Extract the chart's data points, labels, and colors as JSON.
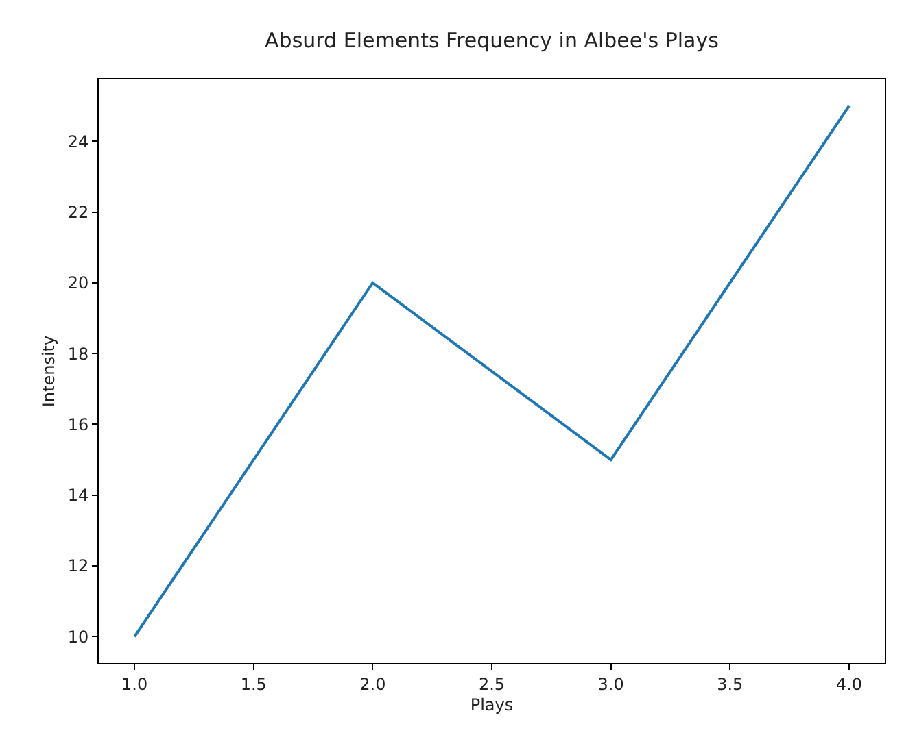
{
  "chart_data": {
    "type": "line",
    "title": "Absurd Elements Frequency in Albee's Plays",
    "xlabel": "Plays",
    "ylabel": "Intensity",
    "x": [
      1,
      2,
      3,
      4
    ],
    "series": [
      {
        "color": "#1f77b4",
        "values": [
          10,
          20,
          15,
          25
        ]
      }
    ],
    "xlim": [
      0.85,
      4.15
    ],
    "xticks": [
      {
        "value": 1,
        "label": "1.0"
      },
      {
        "value": 1.5,
        "label": "1.5"
      },
      {
        "value": 2,
        "label": "2.0"
      },
      {
        "value": 2.5,
        "label": "2.5"
      },
      {
        "value": 3,
        "label": "3.0"
      },
      {
        "value": 3.5,
        "label": "3.5"
      },
      {
        "value": 4,
        "label": "4.0"
      }
    ],
    "ylim": [
      9.25,
      25.75
    ],
    "yticks": [
      10,
      12,
      14,
      16,
      18,
      20,
      22,
      24
    ],
    "legend": false,
    "marker": "none",
    "line_style": "solid"
  }
}
